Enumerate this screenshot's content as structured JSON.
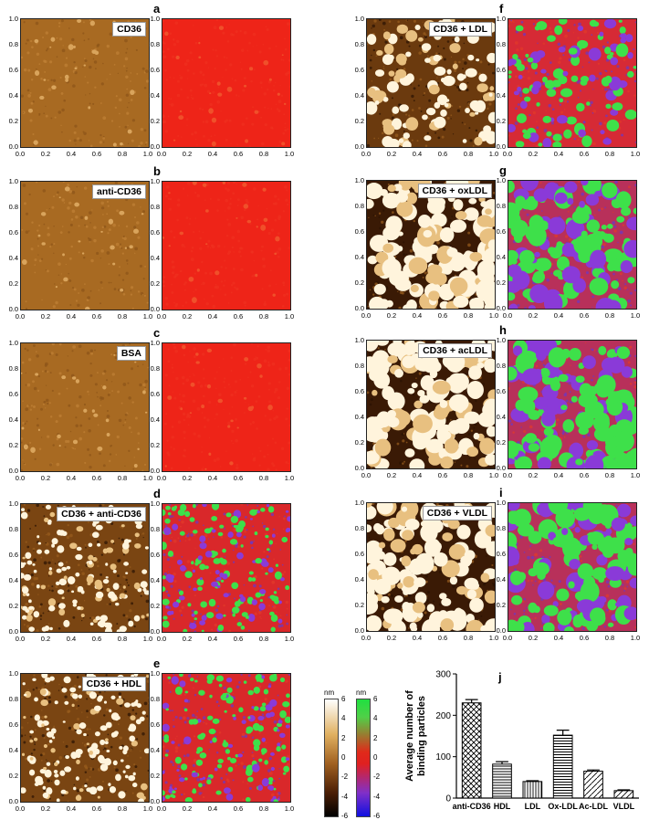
{
  "panels": [
    {
      "id": "a",
      "label": "CD36",
      "kind": "plain"
    },
    {
      "id": "b",
      "label": "anti-CD36",
      "kind": "plain"
    },
    {
      "id": "c",
      "label": "BSA",
      "kind": "plain"
    },
    {
      "id": "d",
      "label": "CD36 + anti-CD36",
      "kind": "dense"
    },
    {
      "id": "e",
      "label": "CD36 + HDL",
      "kind": "dense"
    },
    {
      "id": "f",
      "label": "CD36 + LDL",
      "kind": "medium"
    },
    {
      "id": "g",
      "label": "CD36 + oxLDL",
      "kind": "heavy"
    },
    {
      "id": "h",
      "label": "CD36 + acLDL",
      "kind": "heavy"
    },
    {
      "id": "i",
      "label": "CD36 + VLDL",
      "kind": "heavy"
    }
  ],
  "axis_ticks": [
    "0.0",
    "0.2",
    "0.4",
    "0.6",
    "0.8",
    "1.0"
  ],
  "colorbar_height": {
    "unit": "nm",
    "ticks": [
      "6",
      "4",
      "2",
      "0",
      "-2",
      "-4",
      "-6"
    ]
  },
  "colorbar_phase": {
    "unit": "nm",
    "ticks": [
      "6",
      "4",
      "2",
      "0",
      "-2",
      "-4",
      "-6"
    ]
  },
  "chart_data": {
    "type": "bar",
    "panel_letter": "j",
    "categories": [
      "anti-CD36",
      "HDL",
      "LDL",
      "Ox-LDL",
      "Ac-LDL",
      "VLDL"
    ],
    "values": [
      230,
      82,
      40,
      152,
      65,
      18
    ],
    "errors": [
      8,
      6,
      2,
      12,
      3,
      2
    ],
    "ylabel": "Average number of binding particles",
    "ylim": [
      0,
      300
    ],
    "yticks": [
      "0",
      "100",
      "200",
      "300"
    ]
  }
}
